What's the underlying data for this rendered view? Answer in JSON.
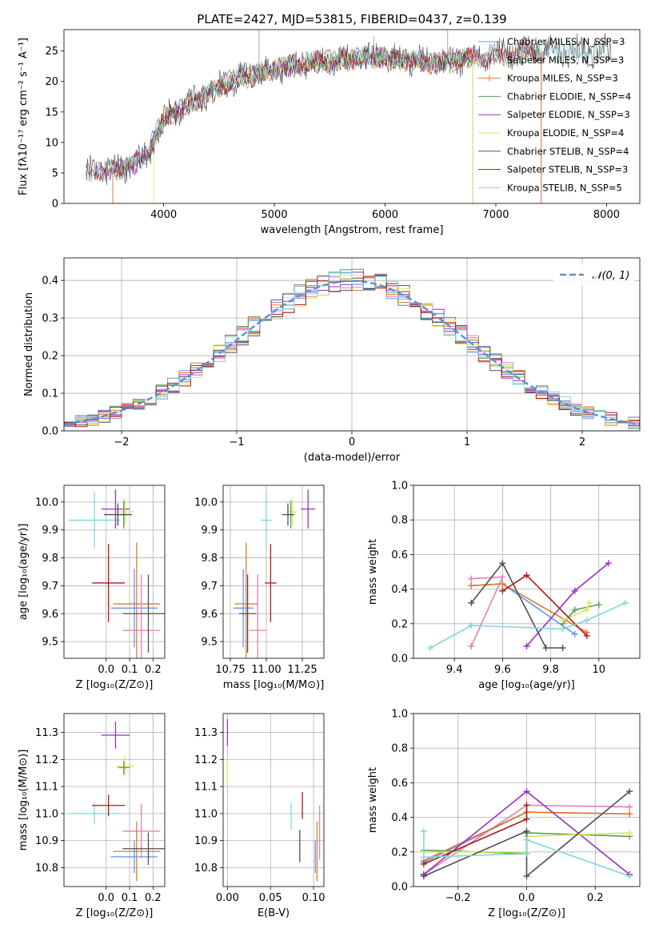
{
  "colors": {
    "chabrier_miles": "#6495ED",
    "salpeter_miles": "#E07FB8",
    "kroupa_miles": "#E07B28",
    "chabrier_elodie": "#5E9A5E",
    "salpeter_elodie": "#9A2FBE",
    "kroupa_elodie": "#D8E860",
    "chabrier_stelib": "#505050",
    "salpeter_stelib": "#B01818",
    "kroupa_stelib": "#7ED8DC",
    "normal_curve": "#5B8FD9",
    "grid": "#b0b0b0"
  },
  "chart_data": [
    {
      "id": "spectrum",
      "type": "line",
      "title": "PLATE=2427, MJD=53815, FIBERID=0437, z=0.139",
      "xlabel": "wavelength [Angstrom, rest frame]",
      "ylabel": "Flux [fλ10⁻¹⁷ erg cm⁻² s⁻¹ A⁻¹]",
      "xlim": [
        3100,
        8300
      ],
      "ylim": [
        0,
        28.5
      ],
      "xticks": [
        4000,
        5000,
        6000,
        7000,
        8000
      ],
      "yticks": [
        0,
        5,
        10,
        15,
        20,
        25
      ],
      "grid": false,
      "legend_position": "top-right",
      "legend": [
        {
          "label": "Chabrier MILES, N_SSP=3",
          "color_key": "chabrier_miles"
        },
        {
          "label": "Salpeter MILES, N_SSP=3",
          "color_key": "salpeter_miles"
        },
        {
          "label": "Kroupa MILES, N_SSP=3",
          "color_key": "kroupa_miles"
        },
        {
          "label": "Chabrier ELODIE, N_SSP=4",
          "color_key": "chabrier_elodie"
        },
        {
          "label": "Salpeter ELODIE, N_SSP=3",
          "color_key": "salpeter_elodie"
        },
        {
          "label": "Kroupa ELODIE, N_SSP=4",
          "color_key": "kroupa_elodie"
        },
        {
          "label": "Chabrier STELIB, N_SSP=4",
          "color_key": "chabrier_stelib"
        },
        {
          "label": "Salpeter STELIB, N_SSP=3",
          "color_key": "salpeter_stelib"
        },
        {
          "label": "Kroupa STELIB, N_SSP=5",
          "color_key": "kroupa_stelib"
        }
      ],
      "continuum": {
        "x": [
          3300,
          3500,
          3700,
          3850,
          3950,
          4050,
          4200,
          4400,
          4600,
          4800,
          5000,
          5300,
          5600,
          5900,
          6200,
          6500,
          6800,
          7100,
          7400
        ],
        "y": [
          5.0,
          5.5,
          6.0,
          8.0,
          12.0,
          14.5,
          16.0,
          18.0,
          20.0,
          21.0,
          22.0,
          23.0,
          23.5,
          24.0,
          23.5,
          23.0,
          24.0,
          24.5,
          25.0
        ]
      }
    },
    {
      "id": "residuals",
      "type": "step",
      "xlabel": "(data-model)/error",
      "ylabel": "Normed distribution",
      "xlim": [
        -2.5,
        2.5
      ],
      "ylim": [
        0,
        0.46
      ],
      "xticks": [
        -2,
        -1,
        0,
        1,
        2
      ],
      "xticklabels": [
        "−2",
        "−1",
        "0",
        "1",
        "2"
      ],
      "yticks": [
        0.0,
        0.1,
        0.2,
        0.3,
        0.4
      ],
      "grid": true,
      "bin_width": 0.1,
      "reference_curve_label": "𝒩(0, 1)",
      "legend_position": "top-right"
    },
    {
      "id": "age_vs_Z",
      "type": "errorbar",
      "xlabel": "Z [log₁₀(Z/Z⊙)]",
      "ylabel": "age  [log₁₀(age/yr)]",
      "xlim": [
        -0.18,
        0.25
      ],
      "ylim": [
        9.44,
        10.06
      ],
      "xticks": [
        0.0,
        0.1,
        0.2
      ],
      "xticklabels": [
        "0.0",
        "0.1",
        "0.2"
      ],
      "yticks": [
        9.5,
        9.6,
        9.7,
        9.8,
        9.9,
        10.0
      ],
      "grid": true,
      "points": [
        {
          "model": "kroupa_stelib",
          "x": -0.05,
          "y": 9.935,
          "xerr": 0.11,
          "yerr": 0.1
        },
        {
          "model": "salpeter_elodie",
          "x": 0.04,
          "y": 9.975,
          "xerr": 0.06,
          "yerr": 0.07
        },
        {
          "model": "kroupa_elodie",
          "x": 0.08,
          "y": 9.965,
          "xerr": 0.04,
          "yerr": 0.05
        },
        {
          "model": "chabrier_elodie",
          "x": 0.075,
          "y": 9.955,
          "xerr": 0.025,
          "yerr": 0.05
        },
        {
          "model": "chabrier_stelib",
          "x": 0.05,
          "y": 9.955,
          "xerr": 0.06,
          "yerr": 0.04
        },
        {
          "model": "salpeter_stelib",
          "x": 0.01,
          "y": 9.71,
          "xerr": 0.07,
          "yerr": 0.14
        },
        {
          "model": "kroupa_miles",
          "x": 0.13,
          "y": 9.635,
          "xerr": 0.1,
          "yerr": 0.22
        },
        {
          "model": "chabrier_miles",
          "x": 0.12,
          "y": 9.62,
          "xerr": 0.1,
          "yerr": 0.14
        },
        {
          "model": "salpeter_miles",
          "x": 0.15,
          "y": 9.54,
          "xerr": 0.08,
          "yerr": 0.2
        },
        {
          "model": "chabrier_stelib",
          "x": 0.18,
          "y": 9.6,
          "xerr": 0.11,
          "yerr": 0.14
        }
      ]
    },
    {
      "id": "age_vs_mass",
      "type": "errorbar",
      "xlabel": "mass [log₁₀(M/M⊙)]",
      "ylabel": "",
      "xlim": [
        10.7,
        11.4
      ],
      "ylim": [
        9.44,
        10.06
      ],
      "xticks": [
        10.75,
        11.0,
        11.25
      ],
      "xticklabels": [
        "10.75",
        "11.00",
        "11.25"
      ],
      "yticks": [
        9.5,
        9.6,
        9.7,
        9.8,
        9.9,
        10.0
      ],
      "grid": true,
      "points": [
        {
          "model": "kroupa_stelib",
          "x": 11.0,
          "y": 9.935,
          "xerr": 0.04,
          "yerr": 0.1
        },
        {
          "model": "kroupa_elodie",
          "x": 11.18,
          "y": 9.965,
          "xerr": 0.04,
          "yerr": 0.05
        },
        {
          "model": "chabrier_elodie",
          "x": 11.17,
          "y": 9.955,
          "xerr": 0.025,
          "yerr": 0.05
        },
        {
          "model": "salpeter_elodie",
          "x": 11.29,
          "y": 9.975,
          "xerr": 0.05,
          "yerr": 0.07
        },
        {
          "model": "chabrier_stelib",
          "x": 11.15,
          "y": 9.955,
          "xerr": 0.04,
          "yerr": 0.04
        },
        {
          "model": "salpeter_stelib",
          "x": 11.03,
          "y": 9.71,
          "xerr": 0.04,
          "yerr": 0.14
        },
        {
          "model": "kroupa_miles",
          "x": 10.86,
          "y": 9.635,
          "xerr": 0.08,
          "yerr": 0.22
        },
        {
          "model": "chabrier_miles",
          "x": 10.84,
          "y": 9.62,
          "xerr": 0.07,
          "yerr": 0.14
        },
        {
          "model": "salpeter_miles",
          "x": 10.94,
          "y": 9.54,
          "xerr": 0.06,
          "yerr": 0.2
        },
        {
          "model": "chabrier_stelib",
          "x": 10.87,
          "y": 9.6,
          "xerr": 0.06,
          "yerr": 0.14
        }
      ]
    },
    {
      "id": "weight_vs_age",
      "type": "line",
      "xlabel": "age  [log₁₀(age/yr)]",
      "ylabel": "mass weight",
      "xlim": [
        9.23,
        10.17
      ],
      "ylim": [
        0,
        1
      ],
      "xticks": [
        9.4,
        9.6,
        9.8,
        10.0
      ],
      "yticks": [
        0.0,
        0.2,
        0.4,
        0.6,
        0.8,
        1.0
      ],
      "grid": true,
      "series": [
        {
          "model": "chabrier_miles",
          "x": [
            9.47,
            9.6,
            9.9
          ],
          "y": [
            0.42,
            0.43,
            0.14
          ]
        },
        {
          "model": "salpeter_miles",
          "x": [
            9.47,
            9.6,
            9.47
          ],
          "y": [
            0.46,
            0.47,
            0.07
          ]
        },
        {
          "model": "kroupa_miles",
          "x": [
            9.47,
            9.6,
            9.95
          ],
          "y": [
            0.42,
            0.43,
            0.15
          ]
        },
        {
          "model": "chabrier_elodie",
          "x": [
            9.85,
            9.9,
            10.0
          ],
          "y": [
            0.2,
            0.28,
            0.31
          ]
        },
        {
          "model": "salpeter_elodie",
          "x": [
            9.7,
            9.9,
            10.04
          ],
          "y": [
            0.07,
            0.39,
            0.55
          ]
        },
        {
          "model": "kroupa_elodie",
          "x": [
            9.85,
            9.95,
            9.96
          ],
          "y": [
            0.22,
            0.28,
            0.32
          ]
        },
        {
          "model": "chabrier_stelib",
          "x": [
            9.47,
            9.6,
            9.78,
            9.85
          ],
          "y": [
            0.32,
            0.55,
            0.06,
            0.06
          ]
        },
        {
          "model": "salpeter_stelib",
          "x": [
            9.6,
            9.7,
            9.95
          ],
          "y": [
            0.39,
            0.48,
            0.13
          ]
        },
        {
          "model": "kroupa_stelib",
          "x": [
            9.3,
            9.47,
            9.85,
            9.95,
            10.11
          ],
          "y": [
            0.06,
            0.19,
            0.17,
            0.22,
            0.32
          ]
        }
      ]
    },
    {
      "id": "mass_vs_Z",
      "type": "errorbar",
      "xlabel": "Z [log₁₀(Z/Z⊙)]",
      "ylabel": "mass [log₁₀(M/M⊙)]",
      "xlim": [
        -0.18,
        0.25
      ],
      "ylim": [
        10.73,
        11.37
      ],
      "xticks": [
        0.0,
        0.1,
        0.2
      ],
      "xticklabels": [
        "0.0",
        "0.1",
        "0.2"
      ],
      "yticks": [
        10.8,
        10.9,
        11.0,
        11.1,
        11.2,
        11.3
      ],
      "grid": true,
      "points": [
        {
          "model": "kroupa_stelib",
          "x": -0.05,
          "y": 11.0,
          "xerr": 0.11,
          "yerr": 0.04
        },
        {
          "model": "salpeter_elodie",
          "x": 0.04,
          "y": 11.29,
          "xerr": 0.06,
          "yerr": 0.05
        },
        {
          "model": "kroupa_elodie",
          "x": 0.08,
          "y": 11.175,
          "xerr": 0.04,
          "yerr": 0.04
        },
        {
          "model": "chabrier_elodie",
          "x": 0.075,
          "y": 11.17,
          "xerr": 0.025,
          "yerr": 0.025
        },
        {
          "model": "salpeter_stelib",
          "x": 0.01,
          "y": 11.03,
          "xerr": 0.07,
          "yerr": 0.04
        },
        {
          "model": "salpeter_miles",
          "x": 0.15,
          "y": 10.935,
          "xerr": 0.08,
          "yerr": 0.1
        },
        {
          "model": "kroupa_miles",
          "x": 0.13,
          "y": 10.86,
          "xerr": 0.1,
          "yerr": 0.11
        },
        {
          "model": "chabrier_miles",
          "x": 0.12,
          "y": 10.84,
          "xerr": 0.1,
          "yerr": 0.06
        },
        {
          "model": "chabrier_stelib",
          "x": 0.18,
          "y": 10.87,
          "xerr": 0.11,
          "yerr": 0.06
        }
      ]
    },
    {
      "id": "mass_vs_EBV",
      "type": "errorbar",
      "xlabel": "E(B-V)",
      "ylabel": "",
      "xlim": [
        -0.005,
        0.112
      ],
      "ylim": [
        10.73,
        11.37
      ],
      "xticks": [
        0.0,
        0.05,
        0.1
      ],
      "xticklabels": [
        "0.00",
        "0.05",
        "0.10"
      ],
      "yticks": [
        10.8,
        10.9,
        11.0,
        11.1,
        11.2,
        11.3
      ],
      "grid": true,
      "points": [
        {
          "model": "salpeter_elodie",
          "x": 0.0,
          "y": 11.3,
          "xerr": 0.0,
          "yerr": 0.05
        },
        {
          "model": "kroupa_elodie",
          "x": 0.0,
          "y": 11.15,
          "xerr": 0.0,
          "yerr": 0.05
        },
        {
          "model": "kroupa_stelib",
          "x": 0.074,
          "y": 10.99,
          "xerr": 0.0,
          "yerr": 0.05
        },
        {
          "model": "salpeter_stelib",
          "x": 0.087,
          "y": 11.03,
          "xerr": 0.0,
          "yerr": 0.05
        },
        {
          "model": "chabrier_stelib",
          "x": 0.084,
          "y": 10.88,
          "xerr": 0.0,
          "yerr": 0.06
        },
        {
          "model": "salpeter_miles",
          "x": 0.107,
          "y": 10.93,
          "xerr": 0.0,
          "yerr": 0.1
        },
        {
          "model": "kroupa_miles",
          "x": 0.104,
          "y": 10.86,
          "xerr": 0.0,
          "yerr": 0.11
        },
        {
          "model": "chabrier_miles",
          "x": 0.102,
          "y": 10.84,
          "xerr": 0.0,
          "yerr": 0.06
        }
      ]
    },
    {
      "id": "weight_vs_Z",
      "type": "line",
      "xlabel": "Z [log₁₀(Z/Z⊙)]",
      "ylabel": "mass weight",
      "xlim": [
        -0.33,
        0.33
      ],
      "ylim": [
        0,
        1
      ],
      "xticks": [
        -0.2,
        0.0,
        0.2
      ],
      "xticklabels": [
        "−0.2",
        "0.0",
        "0.2"
      ],
      "yticks": [
        0.0,
        0.2,
        0.4,
        0.6,
        0.8,
        1.0
      ],
      "grid": true,
      "series": [
        {
          "model": "chabrier_miles",
          "x": [
            -0.3,
            0.0,
            0.3
          ],
          "y": [
            0.14,
            0.43,
            0.42
          ]
        },
        {
          "model": "salpeter_miles",
          "x": [
            -0.3,
            0.0,
            0.3
          ],
          "y": [
            0.07,
            0.47,
            0.46
          ]
        },
        {
          "model": "kroupa_miles",
          "x": [
            -0.3,
            0.0,
            0.3
          ],
          "y": [
            0.15,
            0.43,
            0.42
          ]
        },
        {
          "model": "chabrier_elodie",
          "x": [
            -0.3,
            0.0,
            0.0,
            0.3
          ],
          "y": [
            0.21,
            0.19,
            0.31,
            0.29
          ]
        },
        {
          "model": "salpeter_elodie",
          "x": [
            -0.3,
            0.0,
            0.3
          ],
          "y": [
            0.07,
            0.55,
            0.07
          ]
        },
        {
          "model": "kroupa_elodie",
          "x": [
            -0.3,
            0.0,
            0.0,
            0.3
          ],
          "y": [
            0.2,
            0.2,
            0.29,
            0.31
          ]
        },
        {
          "model": "chabrier_stelib",
          "x": [
            -0.3,
            0.0,
            0.0,
            0.3
          ],
          "y": [
            0.06,
            0.32,
            0.06,
            0.55
          ]
        },
        {
          "model": "salpeter_stelib",
          "x": [
            -0.3,
            0.0,
            0.0
          ],
          "y": [
            0.13,
            0.39,
            0.47
          ]
        },
        {
          "model": "kroupa_stelib",
          "x": [
            -0.3,
            -0.3,
            0.0,
            0.0,
            0.3
          ],
          "y": [
            0.32,
            0.17,
            0.19,
            0.27,
            0.06
          ]
        }
      ]
    }
  ]
}
